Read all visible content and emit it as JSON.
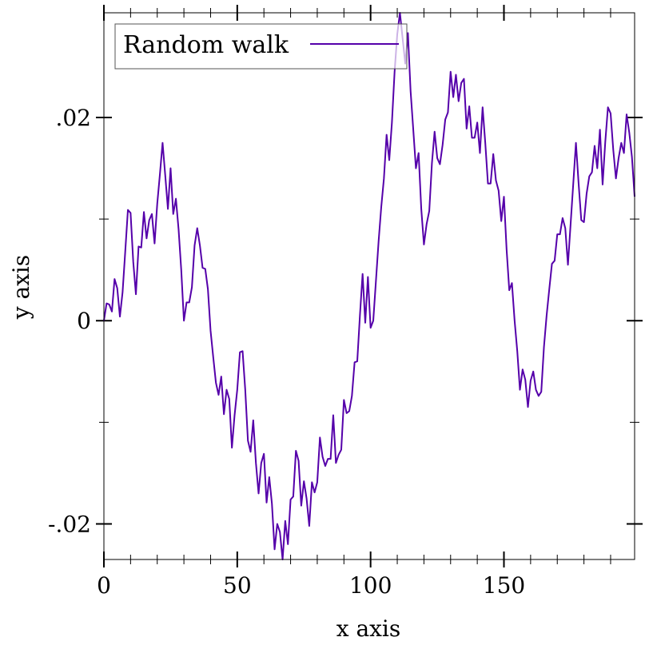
{
  "colors": {
    "series": "#5500aa",
    "axis": "#000000",
    "background": "#ffffff",
    "legend_border": "#555555"
  },
  "chart_data": {
    "type": "line",
    "xlabel": "x axis",
    "ylabel": "y axis",
    "xlim": [
      0,
      199
    ],
    "ylim": [
      -0.0235,
      0.0303
    ],
    "x_major_ticks": [
      0,
      50,
      100,
      150
    ],
    "x_tick_labels": [
      "0",
      "50",
      "100",
      "150"
    ],
    "x_minor_ticks": [
      10,
      20,
      30,
      40,
      60,
      70,
      80,
      90,
      110,
      120,
      130,
      140,
      160,
      170,
      180,
      190
    ],
    "y_major_ticks": [
      -0.02,
      0,
      0.02
    ],
    "y_tick_labels": [
      "-.02",
      "0",
      ".02"
    ],
    "y_minor_ticks": [
      -0.01,
      0.01
    ],
    "legend": {
      "placement": "top-left",
      "entries": [
        "Random walk"
      ]
    },
    "series": [
      {
        "name": "Random walk",
        "x_start": 0,
        "x_step": 1,
        "values": [
          0.0,
          0.0017,
          0.0016,
          0.0009,
          0.0041,
          0.0032,
          0.0004,
          0.0028,
          0.0068,
          0.0109,
          0.0106,
          0.0058,
          0.0026,
          0.0073,
          0.0072,
          0.0107,
          0.0081,
          0.0099,
          0.0105,
          0.0076,
          0.0115,
          0.0144,
          0.0175,
          0.0143,
          0.011,
          0.015,
          0.0105,
          0.012,
          0.009,
          0.005,
          0.0,
          0.0018,
          0.0018,
          0.0033,
          0.0074,
          0.0091,
          0.0074,
          0.0052,
          0.0051,
          0.0031,
          -0.001,
          -0.0036,
          -0.0061,
          -0.0073,
          -0.0055,
          -0.0092,
          -0.0068,
          -0.0077,
          -0.0125,
          -0.0093,
          -0.0068,
          -0.0031,
          -0.003,
          -0.0068,
          -0.0118,
          -0.0129,
          -0.0098,
          -0.014,
          -0.017,
          -0.014,
          -0.0131,
          -0.0179,
          -0.0154,
          -0.018,
          -0.0225,
          -0.02,
          -0.0208,
          -0.0235,
          -0.0197,
          -0.022,
          -0.0176,
          -0.0173,
          -0.0128,
          -0.0138,
          -0.0182,
          -0.0158,
          -0.0175,
          -0.0202,
          -0.0159,
          -0.0169,
          -0.0159,
          -0.0115,
          -0.0134,
          -0.0143,
          -0.0136,
          -0.0136,
          -0.0093,
          -0.014,
          -0.0132,
          -0.0127,
          -0.0078,
          -0.0091,
          -0.0089,
          -0.0074,
          -0.0041,
          -0.004,
          0.0005,
          0.0046,
          -0.0002,
          0.0043,
          -0.0007,
          0.0,
          0.0039,
          0.0078,
          0.0112,
          0.014,
          0.0183,
          0.0158,
          0.0195,
          0.0245,
          0.0282,
          0.0303,
          0.0278,
          0.0253,
          0.0283,
          0.0226,
          0.0188,
          0.015,
          0.0165,
          0.011,
          0.0075,
          0.0095,
          0.0108,
          0.0155,
          0.0186,
          0.016,
          0.0154,
          0.0173,
          0.0198,
          0.0205,
          0.0245,
          0.022,
          0.0242,
          0.0216,
          0.0234,
          0.0238,
          0.0189,
          0.0211,
          0.018,
          0.018,
          0.0195,
          0.0165,
          0.021,
          0.0175,
          0.0135,
          0.0135,
          0.0164,
          0.0138,
          0.0128,
          0.0098,
          0.0122,
          0.007,
          0.003,
          0.0037,
          0.0,
          -0.003,
          -0.0068,
          -0.0048,
          -0.0058,
          -0.0085,
          -0.0059,
          -0.005,
          -0.0068,
          -0.0074,
          -0.007,
          -0.0026,
          0.0005,
          0.0031,
          0.0056,
          0.0059,
          0.0085,
          0.0085,
          0.0101,
          0.0091,
          0.0055,
          0.0095,
          0.0135,
          0.0175,
          0.0135,
          0.0099,
          0.0097,
          0.0125,
          0.0142,
          0.0146,
          0.0172,
          0.015,
          0.0188,
          0.0134,
          0.0176,
          0.021,
          0.0204,
          0.0168,
          0.014,
          0.016,
          0.0175,
          0.0165,
          0.0203,
          0.0185,
          0.0161,
          0.0122
        ]
      }
    ]
  }
}
